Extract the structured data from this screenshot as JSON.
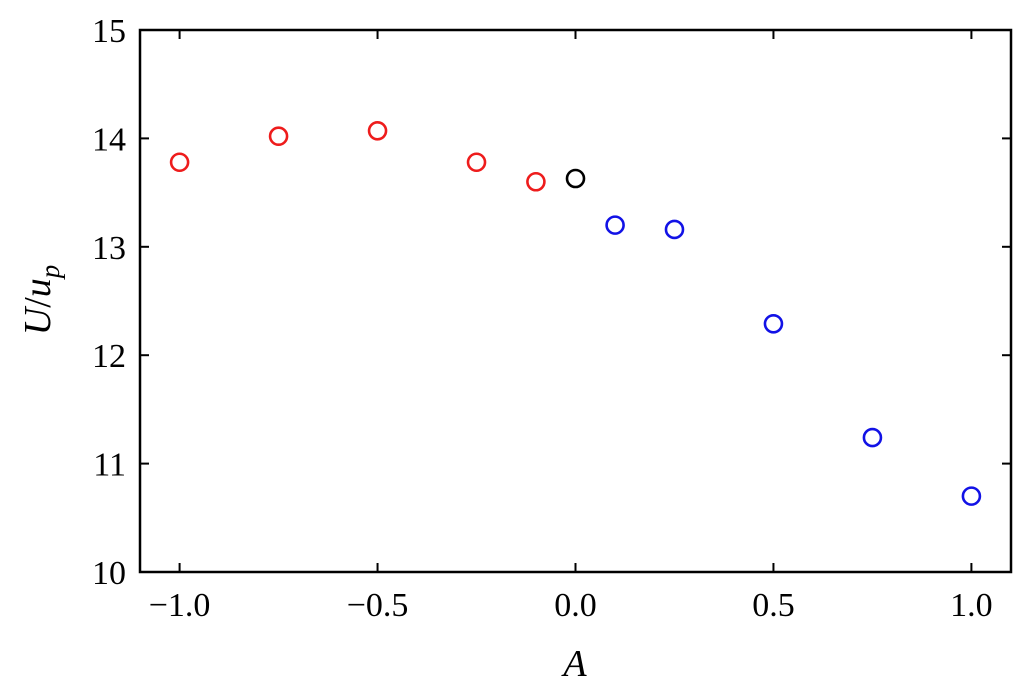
{
  "chart_data": {
    "type": "scatter",
    "xlabel": "A",
    "ylabel_main": "U",
    "ylabel_sep": "/",
    "ylabel_var": "u",
    "ylabel_sub": "p",
    "xlim": [
      -1.1,
      1.1
    ],
    "ylim": [
      10,
      15
    ],
    "x_ticks": [
      -1.0,
      -0.5,
      0.0,
      0.5,
      1.0
    ],
    "x_tick_labels": [
      "−1.0",
      "−0.5",
      "0.0",
      "0.5",
      "1.0"
    ],
    "y_ticks": [
      10,
      11,
      12,
      13,
      14,
      15
    ],
    "y_tick_labels": [
      "10",
      "11",
      "12",
      "13",
      "14",
      "15"
    ],
    "grid": false,
    "marker": "open-circle",
    "series": [
      {
        "color": "#ee1c1c",
        "x": [
          -1.0,
          -0.75,
          -0.5,
          -0.25,
          -0.1
        ],
        "y": [
          13.78,
          14.02,
          14.07,
          13.78,
          13.6
        ]
      },
      {
        "color": "#000000",
        "x": [
          0.0
        ],
        "y": [
          13.63
        ]
      },
      {
        "color": "#1212e6",
        "x": [
          0.1,
          0.25,
          0.5,
          0.75,
          1.0
        ],
        "y": [
          13.2,
          13.16,
          12.29,
          11.24,
          10.7
        ]
      }
    ]
  }
}
